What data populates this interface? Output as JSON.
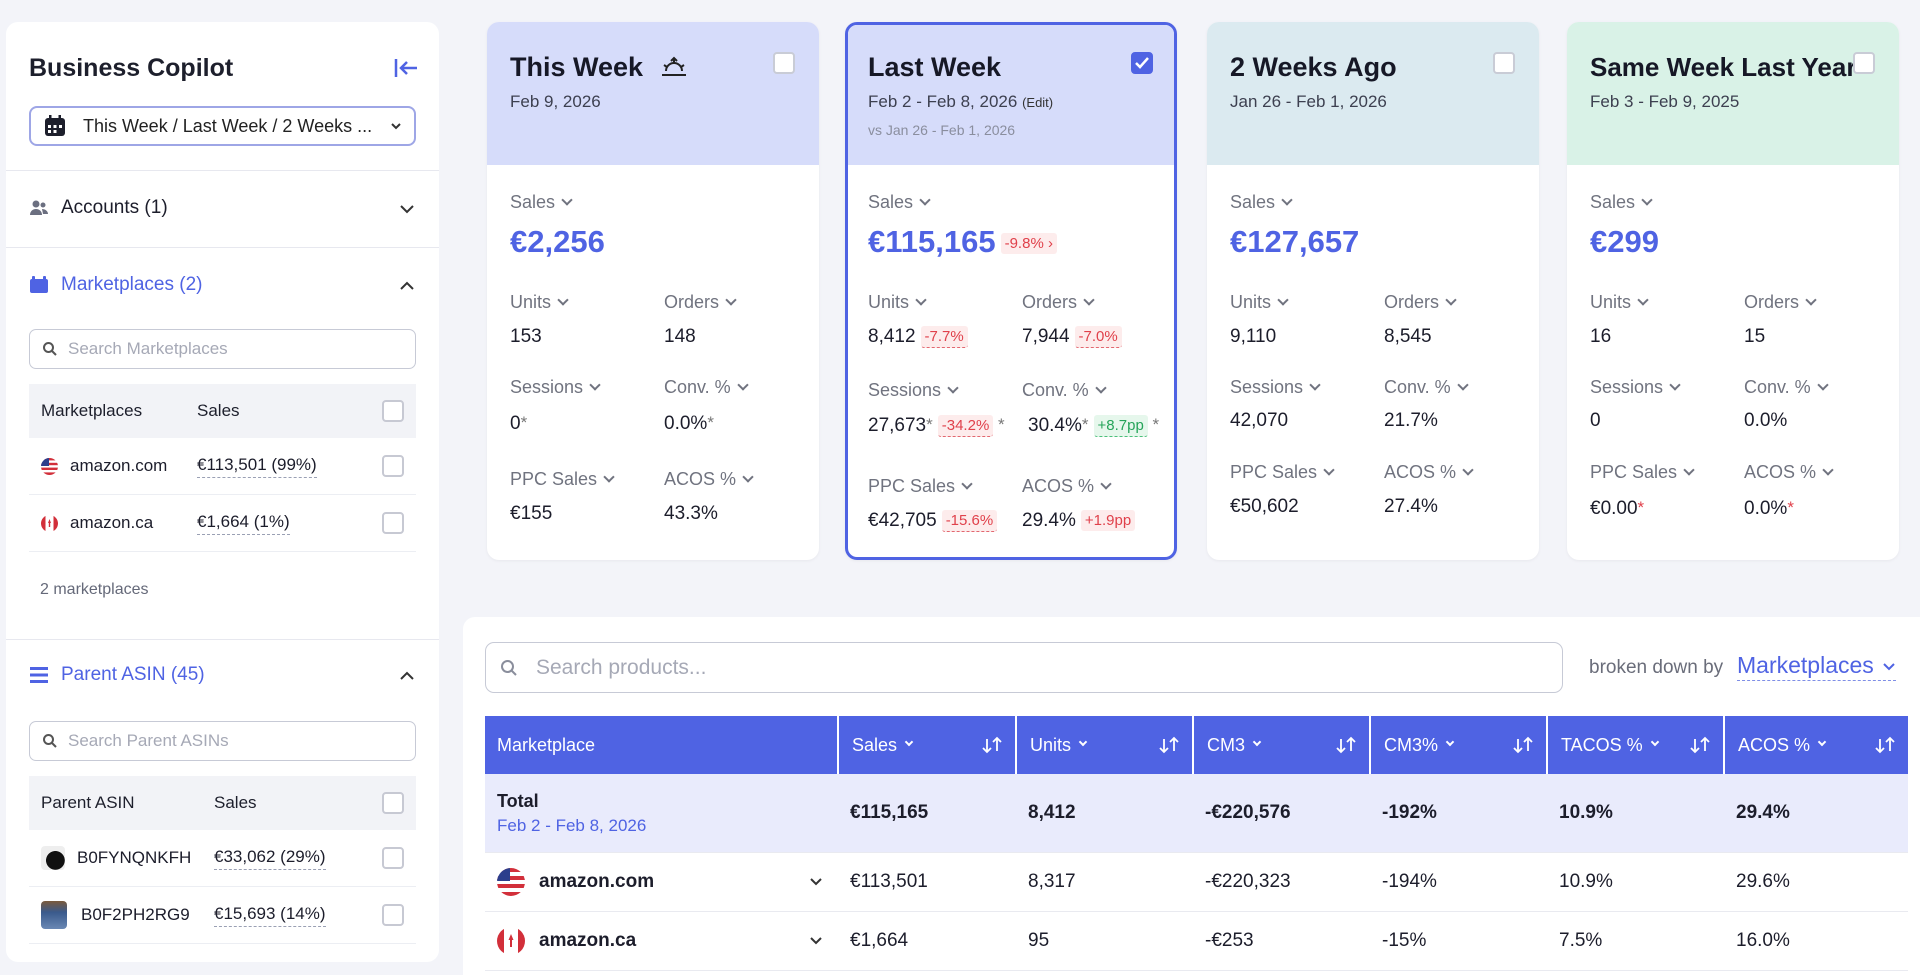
{
  "sidebar": {
    "title": "Business Copilot",
    "date_range": "This Week / Last Week / 2 Weeks ...",
    "accounts": {
      "label": "Accounts (1)"
    },
    "marketplaces": {
      "label": "Marketplaces (2)",
      "search_placeholder": "Search Marketplaces",
      "headers": [
        "Marketplaces",
        "Sales"
      ],
      "rows": [
        {
          "name": "amazon.com",
          "sales": "€113,501 (99%)"
        },
        {
          "name": "amazon.ca",
          "sales": "€1,664 (1%)"
        }
      ],
      "count_note": "2 marketplaces"
    },
    "parent_asin": {
      "label": "Parent ASIN (45)",
      "search_placeholder": "Search Parent ASINs",
      "headers": [
        "Parent ASIN",
        "Sales"
      ],
      "rows": [
        {
          "name": "B0FYNQNKFH",
          "sales": "€33,062 (29%)"
        },
        {
          "name": "B0F2PH2RG9",
          "sales": "€15,693 (14%)"
        }
      ]
    }
  },
  "labels": {
    "sales": "Sales",
    "units": "Units",
    "orders": "Orders",
    "sessions": "Sessions",
    "conv": "Conv. %",
    "ppc_sales": "PPC Sales",
    "acos": "ACOS %",
    "edit": "(Edit)"
  },
  "cards": [
    {
      "title": "This Week",
      "date": "Feb 9, 2026",
      "checked": false,
      "color": "#d6dcfa",
      "sales": "€2,256",
      "units": "153",
      "orders": "148",
      "sessions": "0",
      "conv": "0.0%",
      "ppc_sales": "€155",
      "acos": "43.3%"
    },
    {
      "title": "Last Week",
      "date": "Feb 2 - Feb 8, 2026",
      "compare": "vs Jan 26 - Feb 1, 2026",
      "checked": true,
      "color": "#d6dcfa",
      "sales": "€115,165",
      "sales_delta": "-9.8%",
      "units": "8,412",
      "units_delta": "-7.7%",
      "orders": "7,944",
      "orders_delta": "-7.0%",
      "sessions": "27,673",
      "sessions_delta": "-34.2%",
      "conv": "30.4%",
      "conv_delta": "+8.7pp",
      "ppc_sales": "€42,705",
      "ppc_delta": "-15.6%",
      "acos": "29.4%",
      "acos_delta": "+1.9pp"
    },
    {
      "title": "2 Weeks Ago",
      "date": "Jan 26 - Feb 1, 2026",
      "checked": false,
      "color": "#dbeaf0",
      "sales": "€127,657",
      "units": "9,110",
      "orders": "8,545",
      "sessions": "42,070",
      "conv": "21.7%",
      "ppc_sales": "€50,602",
      "acos": "27.4%"
    },
    {
      "title": "Same Week Last Year",
      "date": "Feb 3 - Feb 9, 2025",
      "checked": false,
      "color": "#d9f2e7",
      "sales": "€299",
      "units": "16",
      "orders": "15",
      "sessions": "0",
      "conv": "0.0%",
      "ppc_sales": "€0.00",
      "acos": "0.0%"
    }
  ],
  "products": {
    "search_placeholder": "Search  products...",
    "broken_down_label": "broken down by",
    "broken_down_value": "Marketplaces",
    "columns": [
      "Marketplace",
      "Sales",
      "Units",
      "CM3",
      "CM3%",
      "TACOS %",
      "ACOS %"
    ],
    "total": {
      "label": "Total",
      "date": "Feb 2 - Feb 8, 2026",
      "sales": "€115,165",
      "units": "8,412",
      "cm3": "-€220,576",
      "cm3p": "-192%",
      "tacos": "10.9%",
      "acos": "29.4%"
    },
    "rows": [
      {
        "name": "amazon.com",
        "sales": "€113,501",
        "units": "8,317",
        "cm3": "-€220,323",
        "cm3p": "-194%",
        "tacos": "10.9%",
        "acos": "29.6%"
      },
      {
        "name": "amazon.ca",
        "sales": "€1,664",
        "units": "95",
        "cm3": "-€253",
        "cm3p": "-15%",
        "tacos": "7.5%",
        "acos": "16.0%"
      }
    ]
  },
  "colors": {
    "accent": "#4f63e3",
    "negative": "#e0414b",
    "positive": "#26a45a"
  }
}
